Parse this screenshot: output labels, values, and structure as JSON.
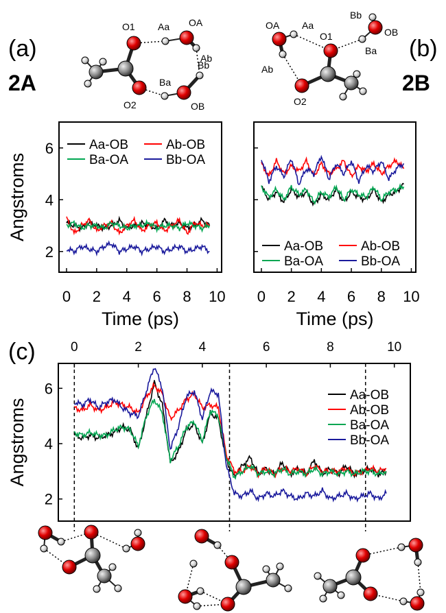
{
  "panels": {
    "a": {
      "letter": "(a)",
      "label": "2A"
    },
    "b": {
      "letter": "(b)",
      "label": "2B"
    },
    "c": {
      "letter": "(c)"
    }
  },
  "molecule_2A": {
    "atoms": [
      "O1",
      "Aa",
      "OA",
      "Ab",
      "Bb",
      "Ba",
      "O2",
      "OB"
    ]
  },
  "molecule_2B": {
    "atoms": [
      "OA",
      "Aa",
      "Bb",
      "OB",
      "O1",
      "Ba",
      "Ab",
      "O2"
    ]
  },
  "colors": {
    "Aa-OB": "#000000",
    "Ab-OB": "#ff0000",
    "Ba-OA": "#00a651",
    "Bb-OA": "#1a1a9c"
  },
  "chart_data": [
    {
      "id": "a",
      "type": "line",
      "xlabel": "Time (ps)",
      "ylabel": "Angstroms",
      "xlim": [
        -0.5,
        10.3
      ],
      "ylim": [
        1.2,
        7.0
      ],
      "xticks": [
        0,
        2,
        4,
        6,
        8,
        10
      ],
      "yticks": [
        2,
        4,
        6
      ],
      "legend_placement": "top-left",
      "x": [
        0,
        0.5,
        1,
        1.5,
        2,
        2.5,
        3,
        3.5,
        4,
        4.5,
        5,
        5.5,
        6,
        6.5,
        7,
        7.5,
        8,
        8.5,
        9,
        9.5
      ],
      "series": [
        {
          "name": "Aa-OB",
          "color": "#000000",
          "values": [
            3.1,
            3.0,
            2.9,
            3.1,
            3.0,
            2.9,
            3.0,
            3.2,
            2.9,
            3.0,
            3.1,
            3.0,
            2.9,
            3.2,
            3.0,
            3.1,
            2.9,
            3.0,
            3.2,
            3.0
          ]
        },
        {
          "name": "Ab-OB",
          "color": "#ff0000",
          "values": [
            3.3,
            2.7,
            3.0,
            3.2,
            2.8,
            3.0,
            3.1,
            2.7,
            3.0,
            3.2,
            2.8,
            3.0,
            3.1,
            2.8,
            3.0,
            3.2,
            2.7,
            3.1,
            3.0,
            3.0
          ]
        },
        {
          "name": "Ba-OA",
          "color": "#00a651",
          "values": [
            3.0,
            3.1,
            2.9,
            3.0,
            3.0,
            2.9,
            3.1,
            3.0,
            2.9,
            3.0,
            3.0,
            3.1,
            2.9,
            3.0,
            3.0,
            2.9,
            3.1,
            3.0,
            2.9,
            3.0
          ]
        },
        {
          "name": "Bb-OA",
          "color": "#1a1a9c",
          "values": [
            2.1,
            2.0,
            2.2,
            2.1,
            2.0,
            2.2,
            2.3,
            2.0,
            2.1,
            2.2,
            2.0,
            2.1,
            2.2,
            2.0,
            2.1,
            2.2,
            2.0,
            2.1,
            2.2,
            2.0
          ]
        }
      ]
    },
    {
      "id": "b",
      "type": "line",
      "xlabel": "Time (ps)",
      "ylabel": "",
      "xlim": [
        -0.5,
        10.3
      ],
      "ylim": [
        1.2,
        7.0
      ],
      "xticks": [
        0,
        2,
        4,
        6,
        8,
        10
      ],
      "yticks": [
        2,
        4,
        6
      ],
      "legend_placement": "bottom",
      "x": [
        0,
        0.5,
        1,
        1.5,
        2,
        2.5,
        3,
        3.5,
        4,
        4.5,
        5,
        5.5,
        6,
        6.5,
        7,
        7.5,
        8,
        8.5,
        9,
        9.5
      ],
      "series": [
        {
          "name": "Aa-OB",
          "color": "#000000",
          "values": [
            4.5,
            4.0,
            4.3,
            3.9,
            4.4,
            4.1,
            4.3,
            3.8,
            4.2,
            4.0,
            4.4,
            3.9,
            4.3,
            4.1,
            4.0,
            4.4,
            3.9,
            4.2,
            4.3,
            4.6
          ]
        },
        {
          "name": "Ab-OB",
          "color": "#ff0000",
          "values": [
            5.4,
            4.9,
            5.5,
            5.0,
            5.3,
            5.1,
            5.5,
            4.9,
            5.4,
            5.0,
            5.2,
            5.5,
            4.9,
            5.3,
            5.1,
            5.4,
            5.0,
            5.3,
            5.5,
            5.2
          ]
        },
        {
          "name": "Ba-OA",
          "color": "#00a651",
          "values": [
            4.5,
            4.1,
            4.4,
            4.0,
            4.5,
            4.2,
            4.4,
            3.9,
            4.3,
            4.1,
            4.5,
            4.0,
            4.4,
            4.2,
            4.1,
            4.5,
            4.0,
            4.3,
            4.4,
            4.5
          ]
        },
        {
          "name": "Bb-OA",
          "color": "#1a1a9c",
          "values": [
            5.6,
            4.7,
            5.3,
            4.9,
            5.6,
            4.6,
            5.2,
            5.0,
            5.7,
            4.8,
            5.4,
            5.0,
            5.5,
            4.7,
            5.3,
            5.1,
            5.5,
            4.8,
            5.2,
            5.4
          ]
        }
      ]
    },
    {
      "id": "c",
      "type": "line",
      "xlabel": "",
      "ylabel": "Angstroms",
      "xlim": [
        -0.5,
        10.5
      ],
      "ylim": [
        1.2,
        6.9
      ],
      "xticks": [
        0,
        2,
        4,
        6,
        8,
        10
      ],
      "yticks": [
        2,
        4,
        6
      ],
      "x_axis_position": "top",
      "legend_placement": "right",
      "markers": [
        0,
        4.85,
        9.1
      ],
      "x": [
        0,
        0.25,
        0.5,
        0.75,
        1,
        1.25,
        1.5,
        1.75,
        2,
        2.25,
        2.5,
        2.75,
        3,
        3.25,
        3.5,
        3.75,
        4,
        4.25,
        4.5,
        4.75,
        5,
        5.25,
        5.5,
        5.75,
        6,
        6.25,
        6.5,
        6.75,
        7,
        7.25,
        7.5,
        7.75,
        8,
        8.25,
        8.5,
        8.75,
        9,
        9.25,
        9.5,
        9.75
      ],
      "series": [
        {
          "name": "Aa-OB",
          "color": "#000000",
          "values": [
            4.3,
            4.2,
            4.3,
            4.2,
            4.3,
            4.4,
            4.6,
            4.5,
            3.8,
            5.0,
            6.2,
            5.4,
            3.3,
            3.7,
            4.5,
            4.7,
            4.0,
            5.1,
            4.9,
            3.4,
            2.8,
            3.2,
            3.5,
            2.9,
            3.1,
            2.9,
            3.3,
            2.9,
            3.1,
            2.9,
            3.4,
            2.9,
            3.1,
            2.9,
            3.2,
            2.9,
            3.0,
            3.1,
            2.9,
            3.0
          ]
        },
        {
          "name": "Ab-OB",
          "color": "#ff0000",
          "values": [
            5.3,
            5.2,
            5.4,
            5.2,
            5.3,
            5.5,
            5.4,
            5.3,
            5.1,
            5.7,
            6.1,
            5.8,
            4.9,
            5.2,
            5.6,
            5.8,
            5.3,
            5.4,
            5.3,
            3.6,
            3.0,
            3.0,
            3.2,
            2.9,
            3.1,
            2.9,
            3.1,
            3.0,
            3.1,
            2.9,
            3.2,
            3.0,
            3.0,
            3.0,
            3.1,
            2.9,
            3.0,
            3.1,
            3.0,
            3.1
          ]
        },
        {
          "name": "Ba-OA",
          "color": "#00a651",
          "values": [
            4.4,
            4.3,
            4.4,
            4.3,
            4.3,
            4.5,
            4.6,
            4.5,
            3.9,
            5.0,
            5.6,
            5.1,
            3.4,
            3.9,
            4.6,
            4.8,
            4.1,
            5.2,
            5.0,
            3.5,
            2.8,
            3.0,
            3.2,
            2.9,
            3.0,
            2.9,
            3.1,
            2.9,
            3.0,
            2.9,
            3.1,
            2.9,
            3.0,
            2.9,
            3.0,
            2.9,
            3.0,
            3.0,
            2.9,
            3.0
          ]
        },
        {
          "name": "Bb-OA",
          "color": "#1a1a9c",
          "values": [
            5.5,
            5.4,
            5.6,
            5.3,
            5.5,
            5.6,
            5.3,
            5.1,
            5.0,
            5.9,
            6.8,
            6.0,
            3.8,
            4.6,
            5.7,
            5.9,
            4.9,
            5.9,
            5.8,
            3.2,
            2.2,
            2.1,
            2.3,
            2.0,
            2.2,
            2.1,
            2.3,
            2.1,
            2.0,
            2.2,
            2.1,
            2.3,
            2.0,
            2.1,
            2.2,
            2.0,
            2.1,
            2.2,
            2.0,
            2.2
          ]
        }
      ]
    }
  ]
}
